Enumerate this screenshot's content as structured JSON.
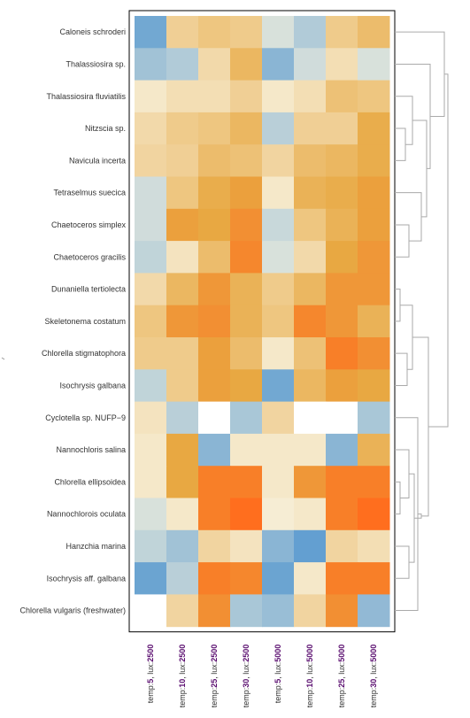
{
  "chart_data": {
    "type": "heatmap",
    "title": "",
    "xlabel": "",
    "ylabel": "",
    "row_labels": [
      "Caloneis schroderi",
      "Thalassiosira sp.",
      "Thalassiosira fluviatilis",
      "Nitzscia sp.",
      "Navicula incerta",
      "Tetraselmus suecica",
      "Chaetoceros simplex",
      "Chaetoceros gracilis",
      "Dunaniella tertiolecta",
      "Skeletonema costatum",
      "Chlorella stigmatophora",
      "Isochrysis galbana",
      "Cyclotella sp. NUFP−9",
      "Nannochloris salina",
      "Chlorella ellipsoidea",
      "Nannochlorois oculata",
      "Hanzchia marina",
      "Isochrysis aff. galbana",
      "Chlorella vulgaris (freshwater)"
    ],
    "columns": [
      {
        "prefix": "temp:",
        "temp": "5",
        "mid": ", lux:",
        "lux": "2500"
      },
      {
        "prefix": "temp:",
        "temp": "10",
        "mid": ", lux:",
        "lux": "2500"
      },
      {
        "prefix": "temp:",
        "temp": "25",
        "mid": ", lux:",
        "lux": "2500"
      },
      {
        "prefix": "temp:",
        "temp": "30",
        "mid": ", lux:",
        "lux": "2500"
      },
      {
        "prefix": "temp:",
        "temp": "5",
        "mid": ", lux:",
        "lux": "5000"
      },
      {
        "prefix": "temp:",
        "temp": "10",
        "mid": ", lux:",
        "lux": "5000"
      },
      {
        "prefix": "temp:",
        "temp": "25",
        "mid": ", lux:",
        "lux": "5000"
      },
      {
        "prefix": "temp:",
        "temp": "30",
        "mid": ", lux:",
        "lux": "5000"
      }
    ],
    "color_scale": {
      "low": "#5b9bd0",
      "mid": "#f7f2de",
      "high": "#ff6e1e",
      "missing": "#ffffff"
    },
    "values_note": "relative level per cell, -1 = low (blue), 0 = neutral (cream), 1 = high (orange); null = blank",
    "values": [
      [
        -0.85,
        0.35,
        0.45,
        0.4,
        -0.2,
        -0.45,
        0.4,
        0.55
      ],
      [
        -0.55,
        -0.45,
        0.25,
        0.6,
        -0.7,
        -0.25,
        0.2,
        -0.2
      ],
      [
        0.1,
        0.2,
        0.2,
        0.35,
        0.1,
        0.2,
        0.5,
        0.45
      ],
      [
        0.25,
        0.4,
        0.45,
        0.6,
        -0.4,
        0.35,
        0.35,
        0.7
      ],
      [
        0.3,
        0.35,
        0.55,
        0.5,
        0.3,
        0.55,
        0.6,
        0.7
      ],
      [
        -0.25,
        0.45,
        0.7,
        0.8,
        0.1,
        0.65,
        0.7,
        0.8
      ],
      [
        -0.25,
        0.8,
        0.75,
        0.9,
        -0.3,
        0.45,
        0.65,
        0.8
      ],
      [
        -0.35,
        0.15,
        0.55,
        0.95,
        -0.2,
        0.25,
        0.75,
        0.85
      ],
      [
        0.25,
        0.6,
        0.85,
        0.65,
        0.4,
        0.6,
        0.85,
        0.85
      ],
      [
        0.45,
        0.85,
        0.9,
        0.65,
        0.45,
        0.95,
        0.85,
        0.65
      ],
      [
        0.4,
        0.4,
        0.8,
        0.55,
        0.1,
        0.5,
        1.0,
        0.9
      ],
      [
        -0.35,
        0.4,
        0.8,
        0.75,
        -0.85,
        0.6,
        0.8,
        0.75
      ],
      [
        0.15,
        -0.4,
        null,
        -0.5,
        0.3,
        null,
        null,
        -0.5
      ],
      [
        0.1,
        0.75,
        -0.7,
        0.1,
        0.1,
        0.1,
        -0.7,
        0.65
      ],
      [
        0.1,
        0.75,
        1.0,
        1.0,
        0.1,
        0.85,
        1.0,
        1.0
      ],
      [
        -0.2,
        0.1,
        1.0,
        1.1,
        0.05,
        0.1,
        1.0,
        1.1
      ],
      [
        -0.35,
        -0.55,
        0.3,
        0.15,
        -0.7,
        -0.95,
        0.3,
        0.2
      ],
      [
        -0.9,
        -0.4,
        1.0,
        0.95,
        -0.9,
        0.1,
        1.0,
        1.0
      ],
      [
        null,
        0.3,
        0.9,
        -0.5,
        -0.6,
        0.3,
        0.9,
        -0.65
      ]
    ]
  }
}
